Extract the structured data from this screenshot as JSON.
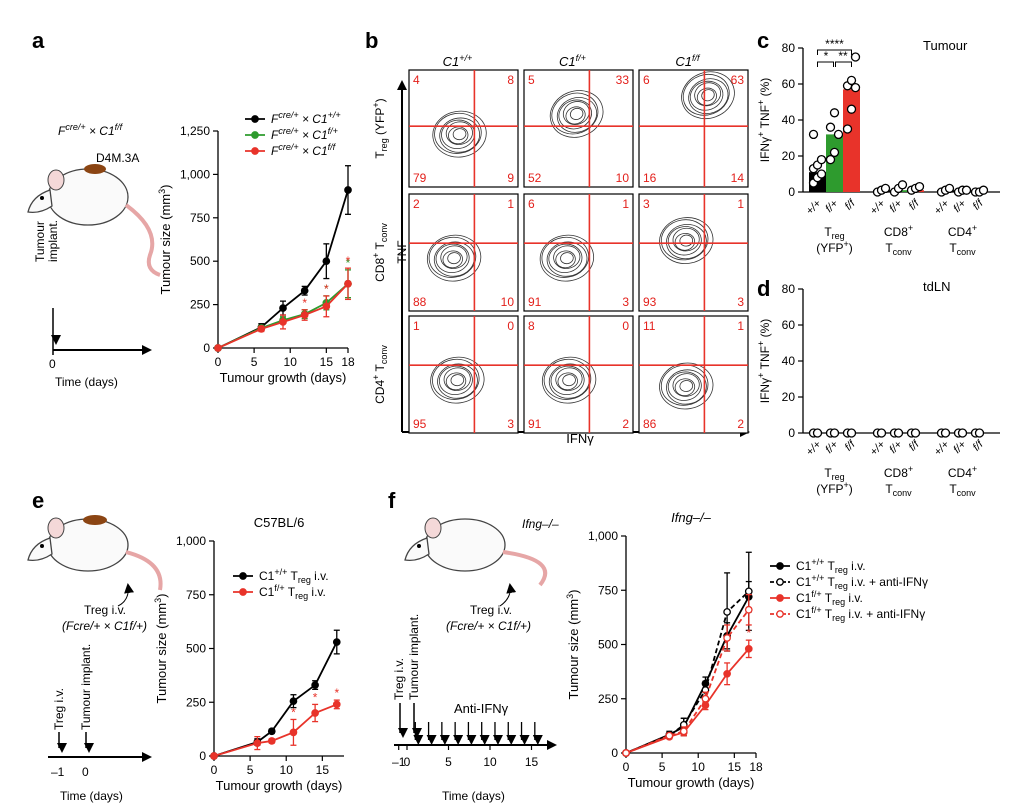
{
  "panels": {
    "a": "a",
    "b": "b",
    "c": "c",
    "d": "d",
    "e": "e",
    "f": "f"
  },
  "colors": {
    "black": "#000000",
    "green": "#2e9b2e",
    "red": "#e8332a",
    "tumour": "#8b4513",
    "flow_line": "#e8332a",
    "quad_text": "#e3201b"
  },
  "panel_a": {
    "mouse_label_prefix": "F",
    "mouse_label_sup1": "cre/+",
    "mouse_label_times": " × C1",
    "mouse_label_sup2": "f/f",
    "tumour_label": "D4M.3A",
    "timeline_event": [
      "Tumour",
      "implant."
    ],
    "timeline_tick": "0",
    "timeline_label": "Time (days)"
  },
  "panel_b": {
    "columns": [
      "C1+/+",
      "C1f/+",
      "C1f/f"
    ],
    "column_sups": [
      "+/+",
      "f/+",
      "f/f"
    ],
    "rows": [
      "Treg (YFP+)",
      "CD8+ Tconv",
      "CD4+ Tconv"
    ],
    "y_axis": "TNF",
    "x_axis": "IFNγ",
    "quadrants": [
      [
        [
          "4",
          "8",
          "79",
          "9"
        ],
        [
          "5",
          "33",
          "52",
          "10"
        ],
        [
          "6",
          "63",
          "16",
          "14"
        ]
      ],
      [
        [
          "2",
          "1",
          "88",
          "10"
        ],
        [
          "6",
          "1",
          "91",
          "3"
        ],
        [
          "3",
          "1",
          "93",
          "3"
        ]
      ],
      [
        [
          "1",
          "0",
          "95",
          "3"
        ],
        [
          "8",
          "0",
          "91",
          "2"
        ],
        [
          "11",
          "1",
          "86",
          "2"
        ]
      ]
    ]
  },
  "chart_data": [
    {
      "id": "a",
      "type": "line",
      "title": "",
      "xlabel": "Tumour growth (days)",
      "ylabel": "Tumour size (mm3)",
      "xlim": [
        0,
        18
      ],
      "ylim": [
        0,
        1250
      ],
      "xticks": [
        0,
        5,
        10,
        15,
        18
      ],
      "yticks": [
        0,
        250,
        500,
        750,
        1000,
        1250
      ],
      "ytick_labels": [
        "0",
        "250",
        "500",
        "750",
        "1,000",
        "1,250"
      ],
      "series": [
        {
          "name": "Fcre/+ × C1+/+",
          "color": "#000000",
          "x": [
            6,
            9,
            12,
            15,
            18
          ],
          "y": [
            120,
            230,
            330,
            500,
            910
          ],
          "err": [
            20,
            40,
            25,
            100,
            140
          ],
          "stars": []
        },
        {
          "name": "Fcre/+ × C1f/+",
          "color": "#2e9b2e",
          "x": [
            6,
            9,
            12,
            15,
            18
          ],
          "y": [
            115,
            160,
            195,
            260,
            370
          ],
          "err": [
            15,
            20,
            25,
            40,
            80
          ],
          "stars": [
            0,
            0,
            0,
            1,
            1
          ]
        },
        {
          "name": "Fcre/+ × C1f/f",
          "color": "#e8332a",
          "x": [
            6,
            9,
            12,
            15,
            18
          ],
          "y": [
            110,
            150,
            190,
            240,
            370
          ],
          "err": [
            15,
            40,
            30,
            60,
            90
          ],
          "stars": [
            0,
            0,
            1,
            1,
            1
          ]
        }
      ]
    },
    {
      "id": "c",
      "type": "bar",
      "title": "Tumour",
      "ylabel": "IFNγ+ TNF+ (%)",
      "ylim": [
        0,
        80
      ],
      "yticks": [
        0,
        20,
        40,
        60,
        80
      ],
      "group_labels": [
        "Treg (YFP+)",
        "CD8+ Tconv",
        "CD4+ Tconv"
      ],
      "genotypes": [
        "+/+",
        "f/+",
        "f/f"
      ],
      "groups": [
        {
          "bars": [
            11,
            32,
            57
          ],
          "colors": [
            "#000000",
            "#2e9b2e",
            "#e8332a"
          ],
          "points": [
            [
              5,
              8,
              10,
              13,
              15,
              18,
              32
            ],
            [
              18,
              22,
              32,
              36,
              44
            ],
            [
              35,
              46,
              58,
              59,
              62,
              75
            ]
          ]
        },
        {
          "bars": [
            1,
            1,
            1
          ],
          "colors": [
            "#000000",
            "#2e9b2e",
            "#e8332a"
          ],
          "points": [
            [
              0,
              1,
              2
            ],
            [
              0,
              2,
              4
            ],
            [
              1,
              2,
              3
            ]
          ]
        },
        {
          "bars": [
            1,
            1,
            1
          ],
          "colors": [
            "#000000",
            "#2e9b2e",
            "#e8332a"
          ],
          "points": [
            [
              0,
              1,
              2
            ],
            [
              0,
              1,
              1
            ],
            [
              0,
              0,
              1
            ]
          ]
        }
      ],
      "significance": [
        "****",
        "*",
        "**"
      ]
    },
    {
      "id": "d",
      "type": "bar",
      "title": "tdLN",
      "ylabel": "IFNγ+ TNF+ (%)",
      "ylim": [
        0,
        80
      ],
      "yticks": [
        0,
        20,
        40,
        60,
        80
      ],
      "group_labels": [
        "Treg (YFP+)",
        "CD8+ Tconv",
        "CD4+ Tconv"
      ],
      "genotypes": [
        "+/+",
        "f/+",
        "f/f"
      ],
      "groups": [
        {
          "bars": [
            0,
            0,
            0
          ],
          "points": [
            [
              0,
              0
            ],
            [
              0,
              0
            ],
            [
              0,
              0
            ]
          ]
        },
        {
          "bars": [
            0,
            0,
            0
          ],
          "points": [
            [
              0,
              0
            ],
            [
              0,
              0
            ],
            [
              0,
              0
            ]
          ]
        },
        {
          "bars": [
            0,
            0,
            0
          ],
          "points": [
            [
              0,
              0
            ],
            [
              0,
              0
            ],
            [
              0,
              0
            ]
          ]
        }
      ]
    },
    {
      "id": "e",
      "type": "line",
      "title": "C57BL/6",
      "xlabel": "Tumour growth (days)",
      "ylabel": "Tumour size (mm3)",
      "xlim": [
        0,
        18
      ],
      "ylim": [
        0,
        1000
      ],
      "xticks": [
        0,
        5,
        10,
        15
      ],
      "yticks": [
        0,
        250,
        500,
        750,
        1000
      ],
      "ytick_labels": [
        "0",
        "250",
        "500",
        "750",
        "1,000"
      ],
      "series": [
        {
          "name": "C1+/+ Treg i.v.",
          "color": "#000000",
          "x": [
            6,
            8,
            11,
            14,
            17
          ],
          "y": [
            65,
            115,
            255,
            330,
            530
          ],
          "err": [
            15,
            10,
            30,
            20,
            55
          ],
          "stars": []
        },
        {
          "name": "C1f/+ Treg i.v.",
          "color": "#e8332a",
          "x": [
            6,
            8,
            11,
            14,
            17
          ],
          "y": [
            60,
            70,
            110,
            200,
            240
          ],
          "err": [
            30,
            10,
            60,
            40,
            20
          ],
          "stars": [
            0,
            0,
            1,
            1,
            1
          ]
        }
      ]
    },
    {
      "id": "f",
      "type": "line",
      "title": "Ifng–/–",
      "xlabel": "Tumour growth (days)",
      "ylabel": "Tumour size (mm3)",
      "xlim": [
        0,
        18
      ],
      "ylim": [
        0,
        1000
      ],
      "xticks": [
        0,
        5,
        10,
        15,
        18
      ],
      "yticks": [
        0,
        250,
        500,
        750,
        1000
      ],
      "ytick_labels": [
        "0",
        "250",
        "500",
        "750",
        "1,000"
      ],
      "series": [
        {
          "name": "C1+/+ Treg i.v.",
          "color": "#000000",
          "filled": true,
          "dashed": false,
          "x": [
            6,
            8,
            11,
            14,
            17
          ],
          "y": [
            85,
            120,
            320,
            540,
            720
          ],
          "err": [
            15,
            40,
            30,
            60,
            70
          ],
          "stars": []
        },
        {
          "name": "C1+/+ Treg i.v. + anti-IFNγ",
          "color": "#000000",
          "filled": false,
          "dashed": true,
          "x": [
            6,
            8,
            11,
            14,
            17
          ],
          "y": [
            80,
            130,
            290,
            650,
            745
          ],
          "err": [
            10,
            30,
            40,
            180,
            180
          ],
          "stars": []
        },
        {
          "name": "C1f/+ Treg i.v.",
          "color": "#e8332a",
          "filled": true,
          "dashed": false,
          "x": [
            6,
            8,
            11,
            14,
            17
          ],
          "y": [
            75,
            95,
            220,
            365,
            480
          ],
          "err": [
            10,
            15,
            20,
            50,
            40
          ],
          "stars": [
            0,
            0,
            0,
            0,
            1
          ]
        },
        {
          "name": "C1f/+ Treg i.v. + anti-IFNγ",
          "color": "#e8332a",
          "filled": false,
          "dashed": true,
          "x": [
            6,
            8,
            11,
            14,
            17
          ],
          "y": [
            80,
            100,
            250,
            530,
            660
          ],
          "err": [
            10,
            20,
            30,
            60,
            70
          ],
          "stars": []
        }
      ]
    }
  ],
  "panel_e": {
    "treg_label": "Treg i.v.",
    "treg_source": "(Fcre/+ × C1f/+)",
    "timeline_events": [
      "Treg i.v.",
      "Tumour implant."
    ],
    "timeline_ticks": [
      "–1",
      "0"
    ],
    "timeline_label": "Time (days)"
  },
  "panel_f": {
    "mouse_label": "Ifng–/–",
    "treg_label": "Treg i.v.",
    "treg_source": "(Fcre/+ × C1f/+)",
    "timeline_events": [
      "Treg i.v.",
      "Tumour implant."
    ],
    "treatment": "Anti-IFNγ",
    "timeline_ticks": [
      "–1",
      "0",
      "5",
      "10",
      "15"
    ],
    "timeline_label": "Time (days)"
  }
}
